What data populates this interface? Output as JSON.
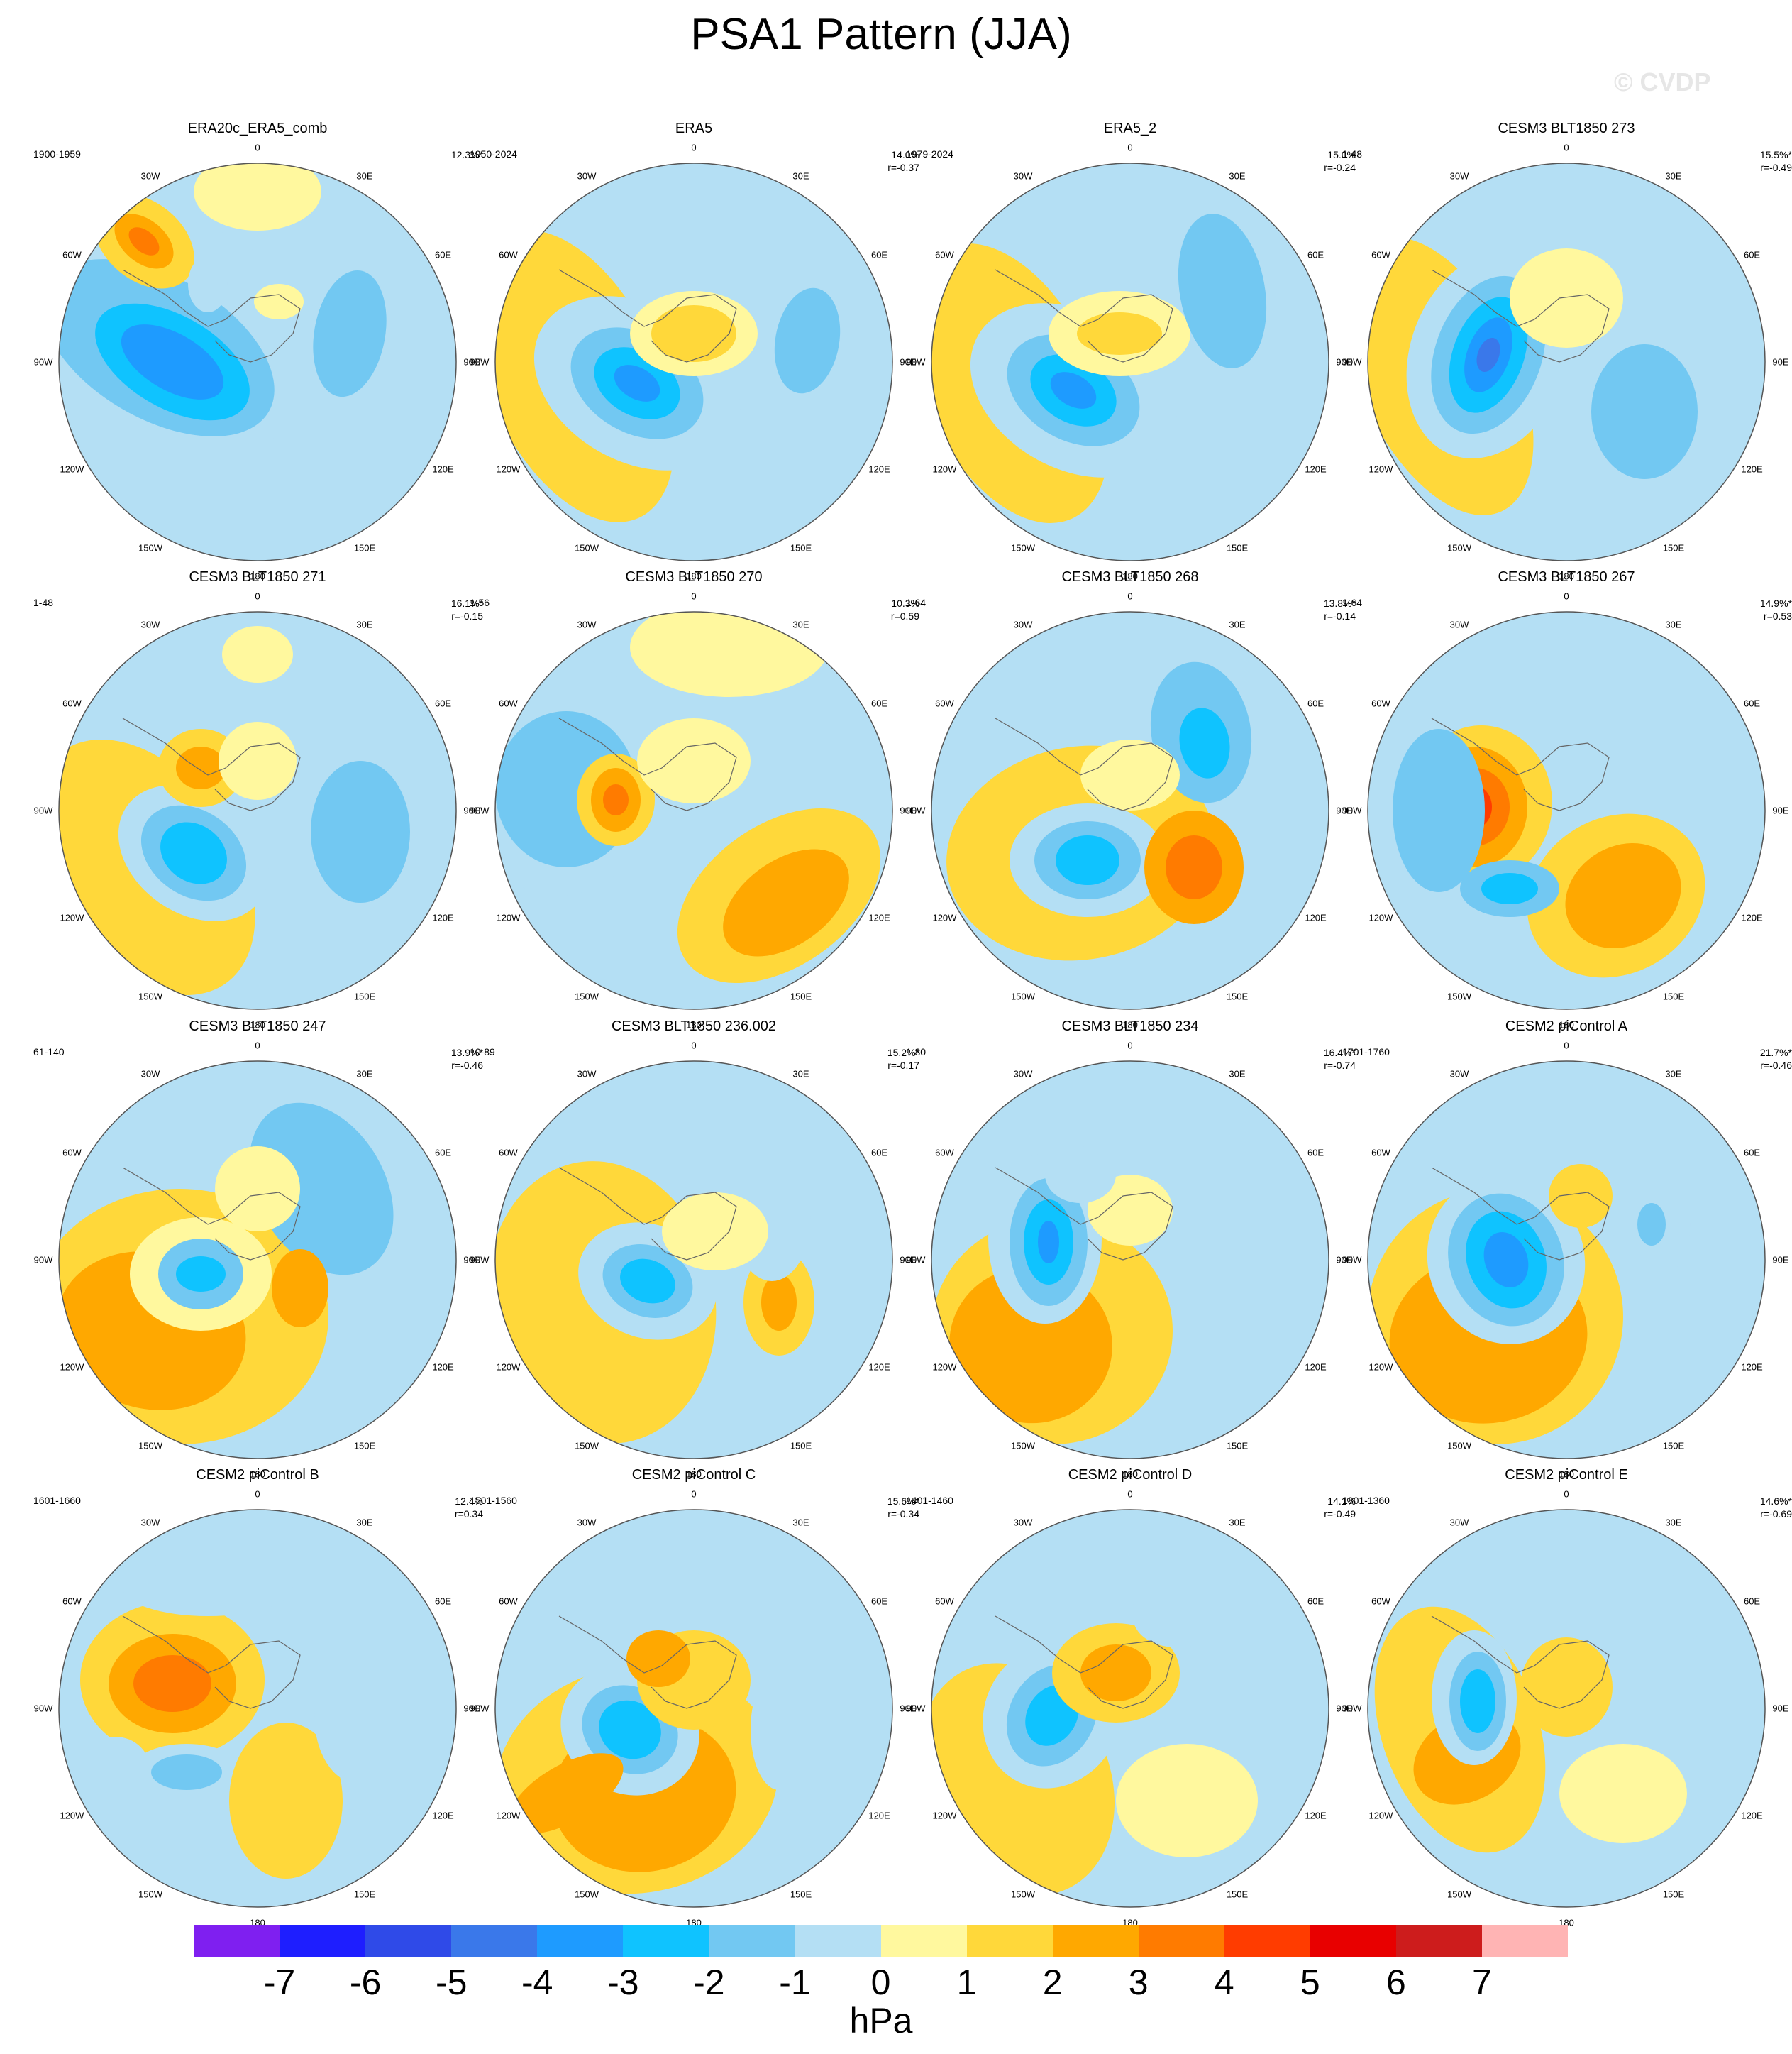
{
  "title": "PSA1 Pattern (JJA)",
  "watermark": "© CVDP",
  "units": "hPa",
  "lon_labels": [
    "0",
    "30E",
    "60E",
    "90E",
    "120E",
    "150E",
    "180",
    "150W",
    "120W",
    "90W",
    "60W",
    "30W"
  ],
  "colorbar": {
    "colors": [
      "#7f1ff0",
      "#1e1eff",
      "#2f4ae8",
      "#3a78ea",
      "#1e9bff",
      "#0fc3ff",
      "#72c8f2",
      "#b4dff4",
      "#fff89e",
      "#ffd83a",
      "#ffa800",
      "#ff7b00",
      "#ff3c00",
      "#e80000",
      "#cd1c1c",
      "#ffb4b4"
    ],
    "ticks": [
      "-7",
      "-6",
      "-5",
      "-4",
      "-3",
      "-2",
      "-1",
      "0",
      "1",
      "2",
      "3",
      "4",
      "5",
      "6",
      "7"
    ]
  },
  "panels": [
    {
      "title": "ERA20c_ERA5_comb",
      "period": "1900-1959",
      "stat1": "12.3%*",
      "stat2": ""
    },
    {
      "title": "ERA5",
      "period": "1950-2024",
      "stat1": "14.0%",
      "stat2": "r=-0.37"
    },
    {
      "title": "ERA5_2",
      "period": "1979-2024",
      "stat1": "15.0%",
      "stat2": "r=-0.24"
    },
    {
      "title": "CESM3 BLT1850 273",
      "period": "1-48",
      "stat1": "15.5%*",
      "stat2": "r=-0.49"
    },
    {
      "title": "CESM3 BLT1850 271",
      "period": "1-48",
      "stat1": "16.1%*",
      "stat2": "r=-0.15"
    },
    {
      "title": "CESM3 BLT1850 270",
      "period": "1-56",
      "stat1": "10.3%",
      "stat2": "r=0.59"
    },
    {
      "title": "CESM3 BLT1850 268",
      "period": "1-64",
      "stat1": "13.8%*",
      "stat2": "r=-0.14"
    },
    {
      "title": "CESM3 BLT1850 267",
      "period": "1-64",
      "stat1": "14.9%*",
      "stat2": "r=0.53"
    },
    {
      "title": "CESM3 BLT1850 247",
      "period": "61-140",
      "stat1": "13.9%*",
      "stat2": "r=-0.46"
    },
    {
      "title": "CESM3 BLT1850 236.002",
      "period": "10-89",
      "stat1": "15.2%*",
      "stat2": "r=-0.17"
    },
    {
      "title": "CESM3 BLT1850 234",
      "period": "1-80",
      "stat1": "16.4%*",
      "stat2": "r=-0.74"
    },
    {
      "title": "CESM2 piControl A",
      "period": "1701-1760",
      "stat1": "21.7%*",
      "stat2": "r=-0.46"
    },
    {
      "title": "CESM2 piControl B",
      "period": "1601-1660",
      "stat1": "12.4%",
      "stat2": "r=0.34"
    },
    {
      "title": "CESM2 piControl C",
      "period": "1501-1560",
      "stat1": "15.6%*",
      "stat2": "r=-0.34"
    },
    {
      "title": "CESM2 piControl D",
      "period": "1401-1460",
      "stat1": "14.1%",
      "stat2": "r=-0.49"
    },
    {
      "title": "CESM2 piControl E",
      "period": "1301-1360",
      "stat1": "14.6%*",
      "stat2": "r=-0.69"
    }
  ]
}
